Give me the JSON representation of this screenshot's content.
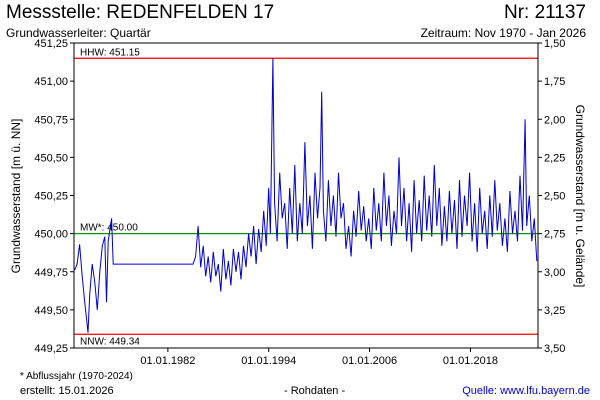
{
  "header": {
    "title": "Messstelle: REDENFELDEN 17",
    "nr": "Nr: 21137",
    "subtitle": "Grundwasserleiter: Quartär",
    "period": "Zeitraum: Nov 1970 - Jan 2026"
  },
  "footer": {
    "footnote": "* Abflussjahr (1970-2024)",
    "created": "erstellt:  15.01.2026",
    "rawdata": "- Rohdaten -",
    "source": "Quelle: www.lfu.bayern.de"
  },
  "chart_data": {
    "type": "line",
    "ylabel": "Grundwasserstand [m ü. NN]",
    "y2label": "Grundwasserstand [m u. Gelände]",
    "ylim": [
      449.25,
      451.25
    ],
    "y2lim": [
      3.5,
      1.5
    ],
    "xlim": [
      1970.83,
      2026.04
    ],
    "yticks": [
      "449,25",
      "449,50",
      "449,75",
      "450,00",
      "450,25",
      "450,50",
      "450,75",
      "451,00",
      "451,25"
    ],
    "y2ticks": [
      "3,50",
      "3,25",
      "3,00",
      "2,75",
      "2,50",
      "2,25",
      "2,00",
      "1,75",
      "1,50"
    ],
    "xticks": [
      "01.01.1982",
      "01.01.1994",
      "01.01.2006",
      "01.01.2018"
    ],
    "xtick_years": [
      1982,
      1994,
      2006,
      2018
    ],
    "grid": false,
    "reference_lines": [
      {
        "label": "HHW: 451.15",
        "value": 451.15,
        "color": "#ff0000"
      },
      {
        "label": "MW*: 450.00",
        "value": 450.0,
        "color": "#009900"
      },
      {
        "label": "NNW: 449.34",
        "value": 449.34,
        "color": "#ff0000"
      }
    ],
    "series": [
      {
        "color": "#0000cc",
        "points": [
          [
            1970.9,
            449.76
          ],
          [
            1971.2,
            449.8
          ],
          [
            1971.5,
            449.93
          ],
          [
            1971.8,
            449.72
          ],
          [
            1972.1,
            449.55
          ],
          [
            1972.3,
            449.45
          ],
          [
            1972.5,
            449.35
          ],
          [
            1972.7,
            449.6
          ],
          [
            1973.0,
            449.8
          ],
          [
            1973.3,
            449.68
          ],
          [
            1973.6,
            449.5
          ],
          [
            1973.9,
            449.75
          ],
          [
            1974.2,
            449.92
          ],
          [
            1974.5,
            449.98
          ],
          [
            1974.7,
            449.55
          ],
          [
            1974.9,
            449.95
          ],
          [
            1975.1,
            450.03
          ],
          [
            1975.3,
            450.1
          ],
          [
            1975.5,
            449.8
          ],
          [
            1978.0,
            449.8
          ],
          [
            1985.0,
            449.8
          ],
          [
            1985.3,
            449.85
          ],
          [
            1985.6,
            450.05
          ],
          [
            1985.9,
            449.78
          ],
          [
            1986.2,
            449.92
          ],
          [
            1986.5,
            449.72
          ],
          [
            1986.8,
            449.85
          ],
          [
            1987.1,
            449.68
          ],
          [
            1987.4,
            449.88
          ],
          [
            1987.7,
            449.72
          ],
          [
            1988.0,
            449.8
          ],
          [
            1988.3,
            449.62
          ],
          [
            1988.6,
            449.9
          ],
          [
            1988.9,
            449.7
          ],
          [
            1989.2,
            449.82
          ],
          [
            1989.5,
            449.66
          ],
          [
            1989.8,
            449.9
          ],
          [
            1990.1,
            449.75
          ],
          [
            1990.4,
            449.88
          ],
          [
            1990.7,
            449.7
          ],
          [
            1991.0,
            449.92
          ],
          [
            1991.3,
            449.78
          ],
          [
            1991.6,
            450.0
          ],
          [
            1991.9,
            449.85
          ],
          [
            1992.2,
            450.05
          ],
          [
            1992.5,
            449.8
          ],
          [
            1992.8,
            450.03
          ],
          [
            1993.1,
            449.88
          ],
          [
            1993.4,
            450.15
          ],
          [
            1993.7,
            449.92
          ],
          [
            1994.0,
            450.3
          ],
          [
            1994.2,
            450.0
          ],
          [
            1994.5,
            451.15
          ],
          [
            1994.7,
            450.2
          ],
          [
            1995.0,
            449.95
          ],
          [
            1995.3,
            450.4
          ],
          [
            1995.6,
            450.1
          ],
          [
            1995.9,
            450.2
          ],
          [
            1996.2,
            449.9
          ],
          [
            1996.5,
            450.3
          ],
          [
            1996.8,
            450.0
          ],
          [
            1997.1,
            450.45
          ],
          [
            1997.4,
            449.95
          ],
          [
            1997.7,
            450.2
          ],
          [
            1998.0,
            450.0
          ],
          [
            1998.3,
            450.6
          ],
          [
            1998.6,
            450.05
          ],
          [
            1998.9,
            450.25
          ],
          [
            1999.2,
            449.9
          ],
          [
            1999.5,
            450.4
          ],
          [
            1999.8,
            450.1
          ],
          [
            2000.1,
            450.3
          ],
          [
            2000.3,
            450.93
          ],
          [
            2000.5,
            450.15
          ],
          [
            2000.8,
            449.95
          ],
          [
            2001.1,
            450.35
          ],
          [
            2001.4,
            450.05
          ],
          [
            2001.7,
            450.25
          ],
          [
            2002.0,
            449.98
          ],
          [
            2002.3,
            450.4
          ],
          [
            2002.6,
            450.1
          ],
          [
            2002.9,
            450.2
          ],
          [
            2003.2,
            449.9
          ],
          [
            2003.5,
            450.05
          ],
          [
            2003.8,
            449.85
          ],
          [
            2004.1,
            450.15
          ],
          [
            2004.4,
            449.98
          ],
          [
            2004.7,
            450.28
          ],
          [
            2005.0,
            450.02
          ],
          [
            2005.3,
            450.18
          ],
          [
            2005.6,
            449.95
          ],
          [
            2005.9,
            450.1
          ],
          [
            2006.2,
            449.9
          ],
          [
            2006.5,
            450.3
          ],
          [
            2006.8,
            450.02
          ],
          [
            2007.1,
            450.2
          ],
          [
            2007.4,
            449.95
          ],
          [
            2007.7,
            450.4
          ],
          [
            2008.0,
            450.05
          ],
          [
            2008.3,
            450.25
          ],
          [
            2008.6,
            449.92
          ],
          [
            2008.9,
            450.15
          ],
          [
            2009.2,
            450.0
          ],
          [
            2009.5,
            450.5
          ],
          [
            2009.8,
            450.05
          ],
          [
            2010.1,
            450.3
          ],
          [
            2010.4,
            449.95
          ],
          [
            2010.7,
            450.2
          ],
          [
            2011.0,
            449.88
          ],
          [
            2011.3,
            450.35
          ],
          [
            2011.6,
            450.0
          ],
          [
            2011.9,
            450.22
          ],
          [
            2012.2,
            449.95
          ],
          [
            2012.5,
            450.38
          ],
          [
            2012.8,
            450.02
          ],
          [
            2013.1,
            450.25
          ],
          [
            2013.4,
            449.98
          ],
          [
            2013.7,
            450.45
          ],
          [
            2014.0,
            450.05
          ],
          [
            2014.3,
            450.3
          ],
          [
            2014.6,
            449.92
          ],
          [
            2014.9,
            450.18
          ],
          [
            2015.2,
            449.95
          ],
          [
            2015.5,
            450.28
          ],
          [
            2015.8,
            450.0
          ],
          [
            2016.1,
            450.22
          ],
          [
            2016.4,
            449.9
          ],
          [
            2016.7,
            450.35
          ],
          [
            2017.0,
            449.98
          ],
          [
            2017.3,
            450.25
          ],
          [
            2017.6,
            450.05
          ],
          [
            2017.9,
            450.4
          ],
          [
            2018.2,
            449.95
          ],
          [
            2018.5,
            450.2
          ],
          [
            2018.8,
            449.88
          ],
          [
            2019.1,
            450.3
          ],
          [
            2019.4,
            450.0
          ],
          [
            2019.7,
            450.15
          ],
          [
            2020.0,
            449.9
          ],
          [
            2020.3,
            450.25
          ],
          [
            2020.6,
            449.98
          ],
          [
            2020.9,
            450.35
          ],
          [
            2021.2,
            450.02
          ],
          [
            2021.5,
            450.2
          ],
          [
            2021.8,
            449.92
          ],
          [
            2022.1,
            450.1
          ],
          [
            2022.4,
            449.88
          ],
          [
            2022.7,
            450.28
          ],
          [
            2023.0,
            450.0
          ],
          [
            2023.3,
            450.15
          ],
          [
            2023.6,
            449.95
          ],
          [
            2023.9,
            450.38
          ],
          [
            2024.2,
            450.02
          ],
          [
            2024.5,
            450.75
          ],
          [
            2024.7,
            450.05
          ],
          [
            2025.0,
            450.25
          ],
          [
            2025.3,
            449.95
          ],
          [
            2025.6,
            450.1
          ],
          [
            2025.9,
            449.82
          ]
        ]
      }
    ]
  }
}
